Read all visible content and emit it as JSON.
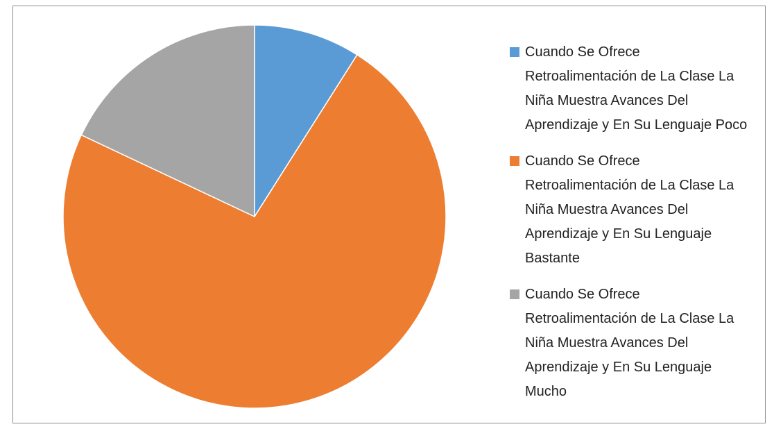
{
  "chart_data": {
    "type": "pie",
    "categories": [
      "Cuando Se Ofrece Retroalimentación de La Clase La Niña Muestra Avances Del Aprendizaje y En Su Lenguaje Poco",
      "Cuando Se Ofrece Retroalimentación de La Clase La Niña Muestra Avances Del Aprendizaje y En Su Lenguaje Bastante",
      "Cuando Se Ofrece Retroalimentación de La Clase La Niña Muestra Avances Del Aprendizaje y En Su Lenguaje Mucho"
    ],
    "values": [
      9,
      73,
      18
    ],
    "colors": [
      "#5b9bd5",
      "#ed7d31",
      "#a5a5a5"
    ],
    "legend": "right"
  }
}
